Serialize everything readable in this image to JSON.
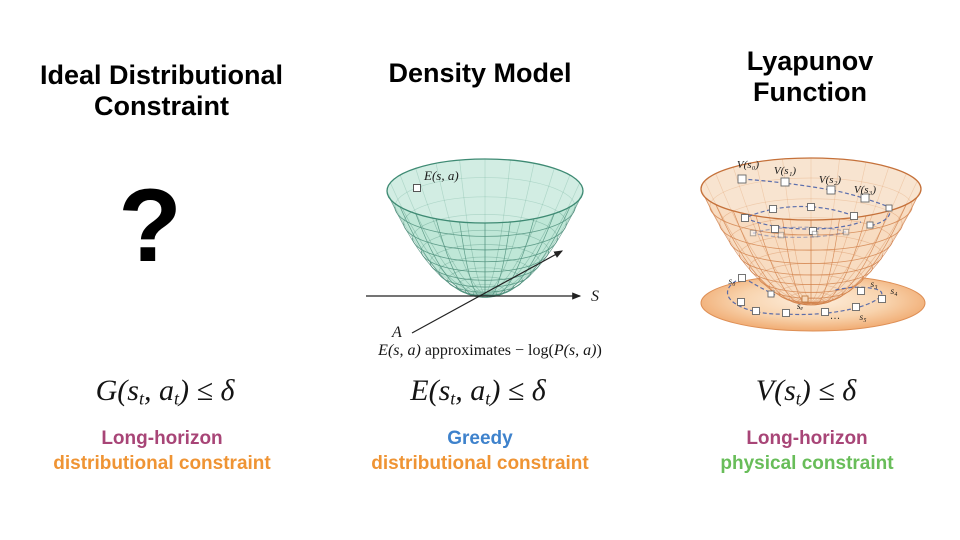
{
  "colors": {
    "long_horizon": "#a84577",
    "distributional": "#ef9434",
    "greedy": "#3e82cc",
    "physical": "#68bd59",
    "density_surface": "#bfe7d7",
    "density_grid": "#4d8f7b",
    "density_rim": "#3e8a73",
    "density_inner": "#a5dbc8",
    "lyapunov_surface": "#f8dcc1",
    "lyapunov_grid": "#d2834c",
    "lyapunov_rim": "#c5713a",
    "lyapunov_inner": "#f2c9a2",
    "trajectory": "#4a62a8"
  },
  "columns": [
    {
      "title_lines": [
        "Ideal Distributional",
        "Constraint"
      ],
      "placeholder_mark": "?",
      "formula_parts": {
        "a": "G(s",
        "b": "t",
        "c": ", a",
        "d": "t",
        "e": ") ≤ δ"
      },
      "label_line1": "Long-horizon",
      "label_line2": "distributional constraint"
    },
    {
      "title_lines": [
        "Density Model"
      ],
      "figure": {
        "point_label": "E(s, a)",
        "axis_s": "S",
        "axis_a": "A"
      },
      "caption_parts": {
        "a": "E(s, a)",
        "b": " approximates ",
        "c": "− log(",
        "d": "P(s, a)",
        "e": ")"
      },
      "formula_parts": {
        "a": "E(s",
        "b": "t",
        "c": ", a",
        "d": "t",
        "e": ") ≤ δ"
      },
      "label_line1": "Greedy",
      "label_line2": "distributional constraint"
    },
    {
      "title_lines": [
        "Lyapunov",
        "Function"
      ],
      "figure": {
        "v_labels": [
          "V(s₀)",
          "V(s₁)",
          "V(s₂)",
          "V(s₃)"
        ],
        "s_labels": {
          "s0": "s₀",
          "s3": "s₃",
          "s4": "s₄",
          "se": "sₑ",
          "s5": "s₅"
        },
        "ellipsis": "…"
      },
      "formula_parts": {
        "a": "V(s",
        "b": "t",
        "c": ") ≤ δ"
      },
      "label_line1": "Long-horizon",
      "label_line2": "physical constraint"
    }
  ]
}
